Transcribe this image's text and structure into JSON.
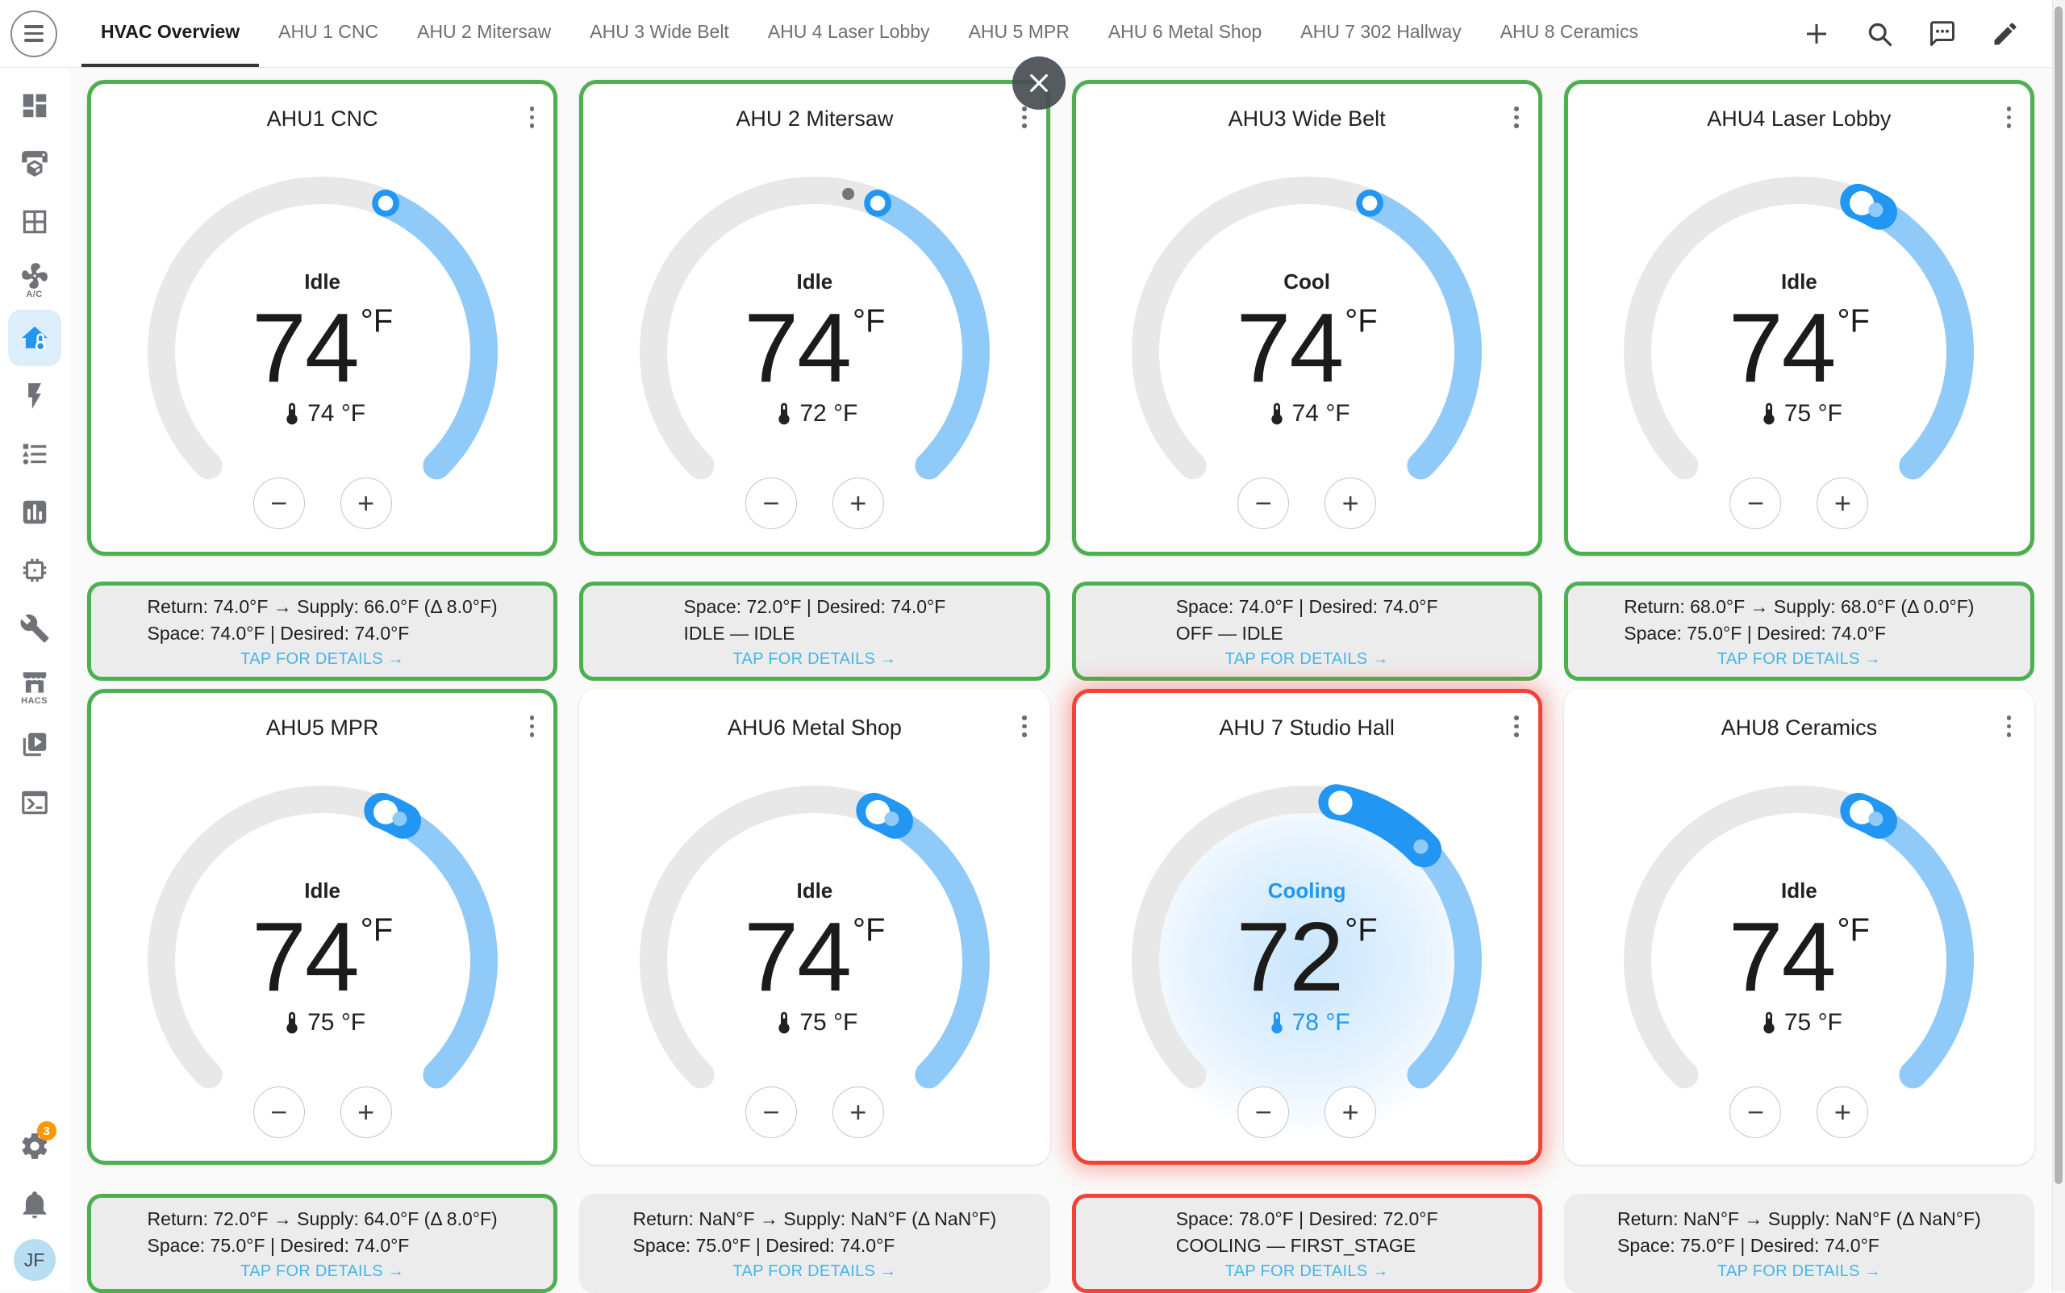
{
  "colors": {
    "accent_green": "#4CAF50",
    "accent_red": "#F44336",
    "accent_blue": "#2196F3",
    "arc_light_blue": "#90CAF9",
    "dial_track": "#e8e8e8",
    "link_blue": "#45B6E7",
    "info_background": "#ECECEC",
    "sidebar_active_background": "#DCEEFA",
    "badge_orange": "#FF9800",
    "avatar_background": "#B7DEF2"
  },
  "topbar": {
    "tabs": [
      {
        "label": "HVAC Overview",
        "active": true
      },
      {
        "label": "AHU 1 CNC"
      },
      {
        "label": "AHU 2 Mitersaw"
      },
      {
        "label": "AHU 3 Wide Belt"
      },
      {
        "label": "AHU 4 Laser Lobby"
      },
      {
        "label": "AHU 5 MPR"
      },
      {
        "label": "AHU 6 Metal Shop"
      },
      {
        "label": "AHU 7 302 Hallway"
      },
      {
        "label": "AHU 8 Ceramics"
      }
    ],
    "actions": [
      {
        "name": "add",
        "icon": "plus"
      },
      {
        "name": "search",
        "icon": "magnify"
      },
      {
        "name": "assist",
        "icon": "chat"
      },
      {
        "name": "edit-dashboard",
        "icon": "pencil"
      }
    ]
  },
  "sidebar": {
    "items": [
      {
        "name": "dashboard",
        "icon": "view-dashboard"
      },
      {
        "name": "printer-3d",
        "icon": "printer-3d"
      },
      {
        "name": "grid",
        "icon": "grid"
      },
      {
        "name": "ac",
        "icon": "fan",
        "label": "A/C"
      },
      {
        "name": "climate",
        "icon": "home-thermometer",
        "active": true
      },
      {
        "name": "energy",
        "icon": "flash"
      },
      {
        "name": "lists",
        "icon": "list"
      },
      {
        "name": "history",
        "icon": "chart-box"
      },
      {
        "name": "esphome",
        "icon": "chip"
      },
      {
        "name": "developer-tools",
        "icon": "wrench"
      },
      {
        "name": "hacs",
        "icon": "store",
        "label": "HACS"
      },
      {
        "name": "media",
        "icon": "media-play"
      },
      {
        "name": "terminal",
        "icon": "console"
      }
    ],
    "bottom": {
      "settings": {
        "badge": "3"
      },
      "user": {
        "initials": "JF"
      }
    }
  },
  "controls": {
    "decrease": "−",
    "increase": "+"
  },
  "cards": [
    {
      "title": "AHU1 CNC",
      "status": "Idle",
      "status_style": "normal",
      "target_display": "74",
      "unit": "°F",
      "sensor": "74 °F",
      "sensor_style": "normal",
      "target": 74,
      "current": 74,
      "dot": "none",
      "style": "green",
      "halo": false,
      "info": {
        "lines": [
          "Return: 74.0°F → Supply: 66.0°F (Δ 8.0°F)",
          "Space: 74.0°F | Desired: 74.0°F"
        ],
        "link": "TAP FOR DETAILS →",
        "style": "green"
      }
    },
    {
      "title": "AHU 2 Mitersaw",
      "status": "Idle",
      "status_style": "normal",
      "target_display": "74",
      "unit": "°F",
      "sensor": "72 °F",
      "sensor_style": "normal",
      "target": 74,
      "current": 72,
      "dot": "gray",
      "style": "green",
      "halo": false,
      "info": {
        "lines": [
          "Space: 72.0°F | Desired: 74.0°F",
          "IDLE — IDLE"
        ],
        "link": "TAP FOR DETAILS →",
        "style": "green"
      }
    },
    {
      "title": "AHU3 Wide Belt",
      "status": "Cool",
      "status_style": "normal",
      "target_display": "74",
      "unit": "°F",
      "sensor": "74 °F",
      "sensor_style": "normal",
      "target": 74,
      "current": 74,
      "dot": "none",
      "style": "green",
      "halo": false,
      "info": {
        "lines": [
          "Space: 74.0°F | Desired: 74.0°F",
          "OFF — IDLE"
        ],
        "link": "TAP FOR DETAILS →",
        "style": "green"
      }
    },
    {
      "title": "AHU4 Laser Lobby",
      "status": "Idle",
      "status_style": "normal",
      "target_display": "74",
      "unit": "°F",
      "sensor": "75 °F",
      "sensor_style": "normal",
      "target": 74,
      "current": 75,
      "dot": "active",
      "style": "green",
      "halo": false,
      "info": {
        "lines": [
          "Return: 68.0°F → Supply: 68.0°F (Δ 0.0°F)",
          "Space: 75.0°F | Desired: 74.0°F"
        ],
        "link": "TAP FOR DETAILS →",
        "style": "green"
      }
    },
    {
      "title": "AHU5 MPR",
      "status": "Idle",
      "status_style": "normal",
      "target_display": "74",
      "unit": "°F",
      "sensor": "75 °F",
      "sensor_style": "normal",
      "target": 74,
      "current": 75,
      "dot": "active",
      "style": "green",
      "halo": false,
      "info": {
        "lines": [
          "Return: 72.0°F → Supply: 64.0°F (Δ 8.0°F)",
          "Space: 75.0°F | Desired: 74.0°F"
        ],
        "link": "TAP FOR DETAILS →",
        "style": "green"
      }
    },
    {
      "title": "AHU6 Metal Shop",
      "status": "Idle",
      "status_style": "normal",
      "target_display": "74",
      "unit": "°F",
      "sensor": "75 °F",
      "sensor_style": "normal",
      "target": 74,
      "current": 75,
      "dot": "active",
      "style": "plain",
      "halo": false,
      "info": {
        "lines": [
          "Return: NaN°F → Supply: NaN°F (Δ NaN°F)",
          "Space: 75.0°F | Desired: 74.0°F"
        ],
        "link": "TAP FOR DETAILS →",
        "style": "plain"
      }
    },
    {
      "title": "AHU 7 Studio Hall",
      "status": "Cooling",
      "status_style": "cooling",
      "target_display": "72",
      "unit": "°F",
      "sensor": "78 °F",
      "sensor_style": "cooling",
      "target": 72,
      "current": 78,
      "dot": "active",
      "style": "red",
      "halo": true,
      "info": {
        "lines": [
          "Space: 78.0°F | Desired: 72.0°F",
          "COOLING — FIRST_STAGE"
        ],
        "link": "TAP FOR DETAILS →",
        "style": "red"
      }
    },
    {
      "title": "AHU8 Ceramics",
      "status": "Idle",
      "status_style": "normal",
      "target_display": "74",
      "unit": "°F",
      "sensor": "75 °F",
      "sensor_style": "normal",
      "target": 74,
      "current": 75,
      "dot": "active",
      "style": "plain",
      "halo": false,
      "info": {
        "lines": [
          "Return: NaN°F → Supply: NaN°F (Δ NaN°F)",
          "Space: 75.0°F | Desired: 74.0°F"
        ],
        "link": "TAP FOR DETAILS →",
        "style": "plain"
      }
    }
  ]
}
